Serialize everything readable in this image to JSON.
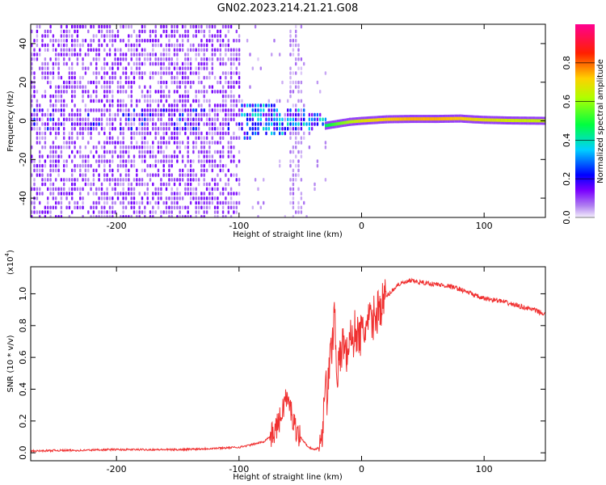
{
  "chart_data": [
    {
      "type": "heatmap",
      "title": "GN02.2023.214.21.21.G08",
      "xlabel": "Height of straight line (km)",
      "ylabel": "Frequency (Hz)",
      "xlim": [
        -270,
        150
      ],
      "ylim": [
        -50,
        50
      ],
      "x_ticks": [
        "-200",
        "-100",
        "0",
        "100"
      ],
      "x_tick_values": [
        -200,
        -100,
        0,
        100
      ],
      "y_ticks": [
        "-40",
        "-20",
        "0",
        "20",
        "40"
      ],
      "y_tick_values": [
        -40,
        -20,
        0,
        20,
        40
      ],
      "colorbar": {
        "label": "Normalized spectral amplitude",
        "range": [
          0,
          1
        ],
        "ticks": [
          "0.0",
          "0.2",
          "0.4",
          "0.6",
          "0.8"
        ],
        "tick_values": [
          0.0,
          0.2,
          0.4,
          0.6,
          0.8
        ],
        "colormap": [
          "#e8e0f8",
          "#8800ff",
          "#0000ff",
          "#00d0ff",
          "#00ff00",
          "#ffff00",
          "#ff0000",
          "#ff0090"
        ]
      },
      "ridge": {
        "description_free": true,
        "height_km": [
          -30,
          -20,
          -10,
          0,
          20,
          40,
          60,
          80,
          90,
          100,
          120,
          150
        ],
        "frequency_hz": [
          -2.5,
          -1.5,
          -0.5,
          0,
          0.8,
          1.0,
          1.0,
          1.2,
          0.8,
          0.5,
          0.2,
          0.0
        ],
        "amplitude": [
          0.45,
          0.55,
          0.62,
          0.68,
          0.72,
          0.74,
          0.74,
          0.72,
          0.7,
          0.68,
          0.66,
          0.64
        ]
      },
      "noise_region_km": [
        -270,
        -100
      ],
      "transition_region_km": [
        -100,
        -30
      ],
      "grid": false
    },
    {
      "type": "line",
      "xlabel": "Height of straight line (km)",
      "ylabel": "SNR (10 * v/v)",
      "y_scale_label": "(x10",
      "y_scale_exponent": "4",
      "y_scale_suffix": ")",
      "xlim": [
        -270,
        150
      ],
      "ylim": [
        -0.05,
        1.17
      ],
      "x_ticks": [
        "-200",
        "-100",
        "0",
        "100"
      ],
      "x_tick_values": [
        -200,
        -100,
        0,
        100
      ],
      "y_ticks": [
        "0.0",
        "0.2",
        "0.4",
        "0.6",
        "0.8",
        "1.0"
      ],
      "y_tick_values": [
        0.0,
        0.2,
        0.4,
        0.6,
        0.8,
        1.0
      ],
      "color": "#f03030",
      "grid": false,
      "series": [
        {
          "x": [
            -270,
            -250,
            -230,
            -210,
            -190,
            -170,
            -150,
            -130,
            -115,
            -100,
            -90,
            -80,
            -72,
            -66,
            -62,
            -58,
            -55,
            -50,
            -45,
            -40,
            -35,
            -32,
            -30,
            -28,
            -26,
            -24,
            -22,
            -20,
            -18,
            -15,
            -12,
            -10,
            -8,
            -5,
            -2,
            0,
            5,
            10,
            15,
            20,
            25,
            30,
            40,
            50,
            60,
            70,
            80,
            90,
            95,
            100,
            110,
            120,
            130,
            140,
            150
          ],
          "y": [
            0.01,
            0.015,
            0.015,
            0.02,
            0.02,
            0.02,
            0.02,
            0.025,
            0.03,
            0.035,
            0.05,
            0.07,
            0.12,
            0.22,
            0.35,
            0.28,
            0.18,
            0.1,
            0.05,
            0.02,
            0.03,
            0.15,
            0.45,
            0.35,
            0.55,
            0.7,
            0.9,
            0.5,
            0.55,
            0.72,
            0.6,
            0.75,
            0.68,
            0.78,
            0.72,
            0.75,
            0.8,
            0.85,
            0.92,
            0.98,
            1.02,
            1.06,
            1.08,
            1.07,
            1.06,
            1.05,
            1.03,
            1.0,
            0.98,
            0.97,
            0.96,
            0.94,
            0.92,
            0.9,
            0.87
          ]
        }
      ]
    }
  ]
}
